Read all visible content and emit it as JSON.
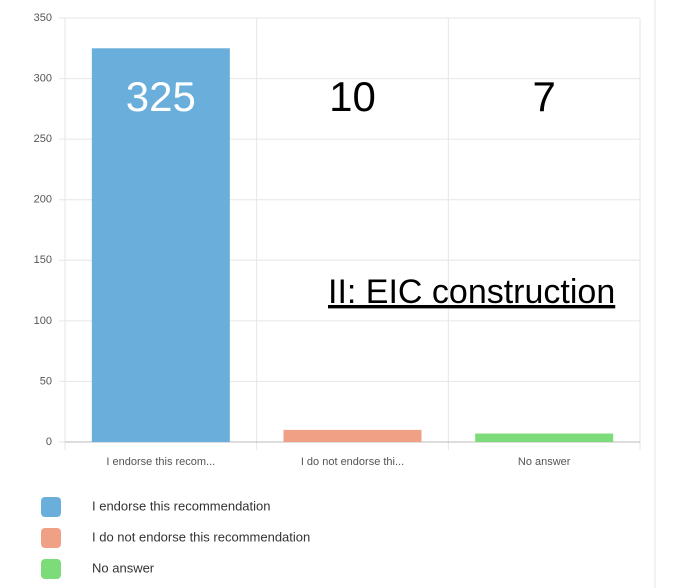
{
  "chart_data": {
    "type": "bar",
    "categories": [
      "I endorse this recom...",
      "I do not endorse thi...",
      "No answer"
    ],
    "values": [
      325,
      10,
      7
    ],
    "colors": [
      "#6aaedb",
      "#f0a085",
      "#7ddc7a"
    ],
    "legend": [
      "I endorse this recommendation",
      "I do not endorse this recommendation",
      "No answer"
    ],
    "ylim": [
      0,
      350
    ],
    "yticks": [
      0,
      50,
      100,
      150,
      200,
      250,
      300,
      350
    ],
    "grid": true,
    "annotation": "II: EIC construction"
  }
}
